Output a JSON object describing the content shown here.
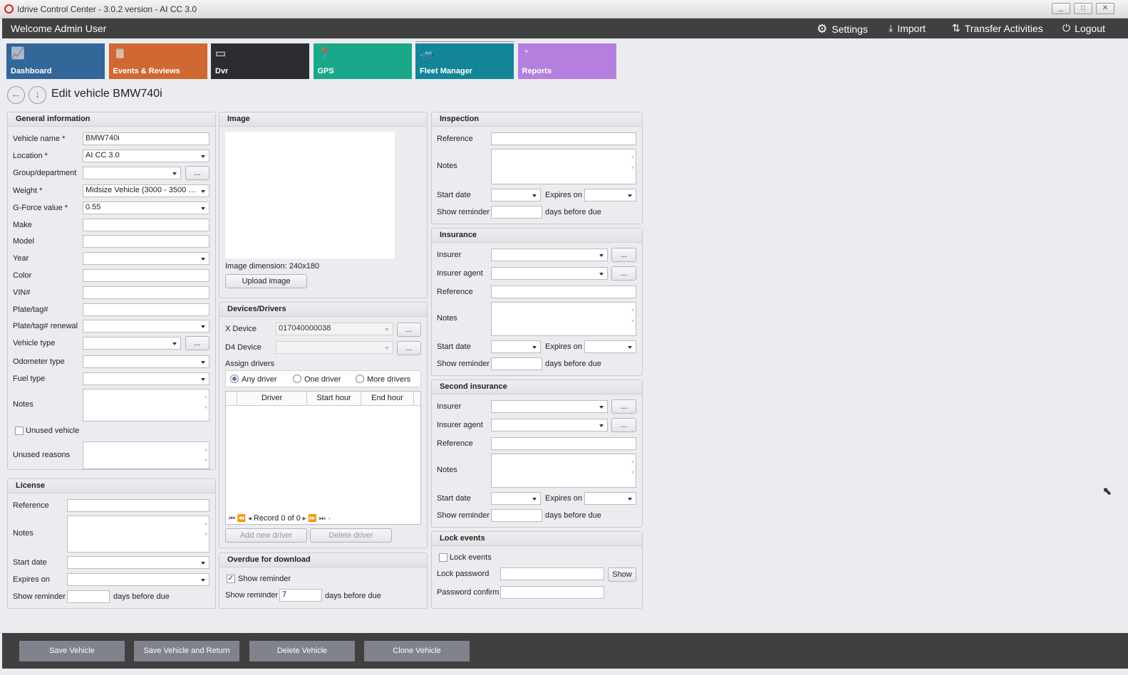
{
  "window": {
    "title": "Idrive Control Center - 3.0.2 version - AI CC 3.0",
    "controls": [
      "_",
      "□",
      "✕"
    ]
  },
  "topbar": {
    "welcome": "Welcome Admin User",
    "actions": [
      {
        "label": "Settings",
        "icon": "gears-icon"
      },
      {
        "label": "Import",
        "icon": "download-icon"
      },
      {
        "label": "Transfer Activities",
        "icon": "transfer-icon"
      },
      {
        "label": "Logout",
        "icon": "power-icon"
      }
    ]
  },
  "modules": [
    {
      "label": "Dashboard",
      "color": "#336699",
      "icon": "chart-icon"
    },
    {
      "label": "Events & Reviews",
      "color": "#cf6833",
      "icon": "clipboard-icon"
    },
    {
      "label": "Dvr",
      "color": "#2b2d31",
      "icon": "dvr-icon"
    },
    {
      "label": "GPS",
      "color": "#1aa88a",
      "icon": "map-pin-icon"
    },
    {
      "label": "Fleet Manager",
      "color": "#128597",
      "icon": "cars-icon",
      "active": true
    },
    {
      "label": "Reports",
      "color": "#b57fe0",
      "icon": "pie-icon"
    }
  ],
  "page": {
    "title": "Edit vehicle BMW740i"
  },
  "general": {
    "title": "General information",
    "rows": [
      {
        "label": "Vehicle name *",
        "type": "text",
        "value": "BMW740i"
      },
      {
        "label": "Location *",
        "type": "select",
        "value": "AI CC 3.0"
      },
      {
        "label": "Group/department",
        "type": "selectbtn",
        "value": ""
      },
      {
        "label": "Weight *",
        "type": "select",
        "value": "Midsize Vehicle (3000 - 3500 p..."
      },
      {
        "label": "G-Force value *",
        "type": "select",
        "value": "0.55"
      },
      {
        "label": "Make",
        "type": "text",
        "value": ""
      },
      {
        "label": "Model",
        "type": "text",
        "value": ""
      },
      {
        "label": "Year",
        "type": "select",
        "value": ""
      },
      {
        "label": "Color",
        "type": "text",
        "value": ""
      },
      {
        "label": "VIN#",
        "type": "text",
        "value": ""
      },
      {
        "label": "Plate/tag#",
        "type": "text",
        "value": ""
      },
      {
        "label": "Plate/tag# renewal",
        "type": "select",
        "value": ""
      },
      {
        "label": "Vehicle type",
        "type": "selectbtn",
        "value": ""
      },
      {
        "label": "Odometer type",
        "type": "select",
        "value": ""
      },
      {
        "label": "Fuel type",
        "type": "select",
        "value": ""
      },
      {
        "label": "Notes",
        "type": "textarea",
        "value": ""
      },
      {
        "label": "Unused vehicle",
        "type": "checkbox",
        "checked": false
      },
      {
        "label": "Unused reasons",
        "type": "textarea",
        "value": ""
      }
    ]
  },
  "license": {
    "title": "License",
    "rows": [
      {
        "label": "Reference",
        "type": "text",
        "value": ""
      },
      {
        "label": "Notes",
        "type": "textarea",
        "value": ""
      },
      {
        "label": "Start date",
        "type": "select",
        "value": ""
      },
      {
        "label": "Expires on",
        "type": "select",
        "value": ""
      },
      {
        "label": "Show reminder",
        "type": "reminder",
        "value": "",
        "suffix": "days before due"
      }
    ]
  },
  "image": {
    "title": "Image",
    "dimension_label": "Image dimension:",
    "dimension": "240x180",
    "upload": "Upload image"
  },
  "devices": {
    "title": "Devices/Drivers",
    "x_device_label": "X Device",
    "x_device": "017040000038",
    "d4_device_label": "D4 Device",
    "d4_device": "",
    "assign_label": "Assign drivers",
    "radios": [
      {
        "label": "Any driver",
        "checked": true
      },
      {
        "label": "One driver",
        "checked": false
      },
      {
        "label": "More drivers",
        "checked": false
      }
    ],
    "columns": [
      "Driver",
      "Start hour",
      "End hour"
    ],
    "record": "Record 0 of 0",
    "add": "Add new driver",
    "delete": "Delete driver",
    "more": "..."
  },
  "overdue": {
    "title": "Overdue for download",
    "checkbox": "Show reminder",
    "checked": true,
    "reminder_label": "Show reminder",
    "reminder": "7",
    "suffix": "days before due"
  },
  "inspection": {
    "title": "Inspection",
    "reference": "Reference",
    "notes": "Notes",
    "start": "Start date",
    "expires": "Expires on",
    "reminder": "Show reminder",
    "suffix": "days before due"
  },
  "insurance": {
    "title": "Insurance",
    "insurer": "Insurer",
    "agent": "Insurer agent",
    "reference": "Reference",
    "notes": "Notes",
    "start": "Start date",
    "expires": "Expires on",
    "reminder": "Show reminder",
    "suffix": "days before due"
  },
  "insurance2": {
    "title": "Second insurance",
    "insurer": "Insurer",
    "agent": "Insurer agent",
    "reference": "Reference",
    "notes": "Notes",
    "start": "Start date",
    "expires": "Expires on",
    "reminder": "Show reminder",
    "suffix": "days before due"
  },
  "lock": {
    "title": "Lock events",
    "checkbox": "Lock events",
    "checked": false,
    "password": "Lock password",
    "confirm": "Password confirm",
    "show": "Show"
  },
  "footer": [
    "Save Vehicle",
    "Save Vehicle and Return",
    "Delete Vehicle",
    "Clone Vehicle"
  ]
}
